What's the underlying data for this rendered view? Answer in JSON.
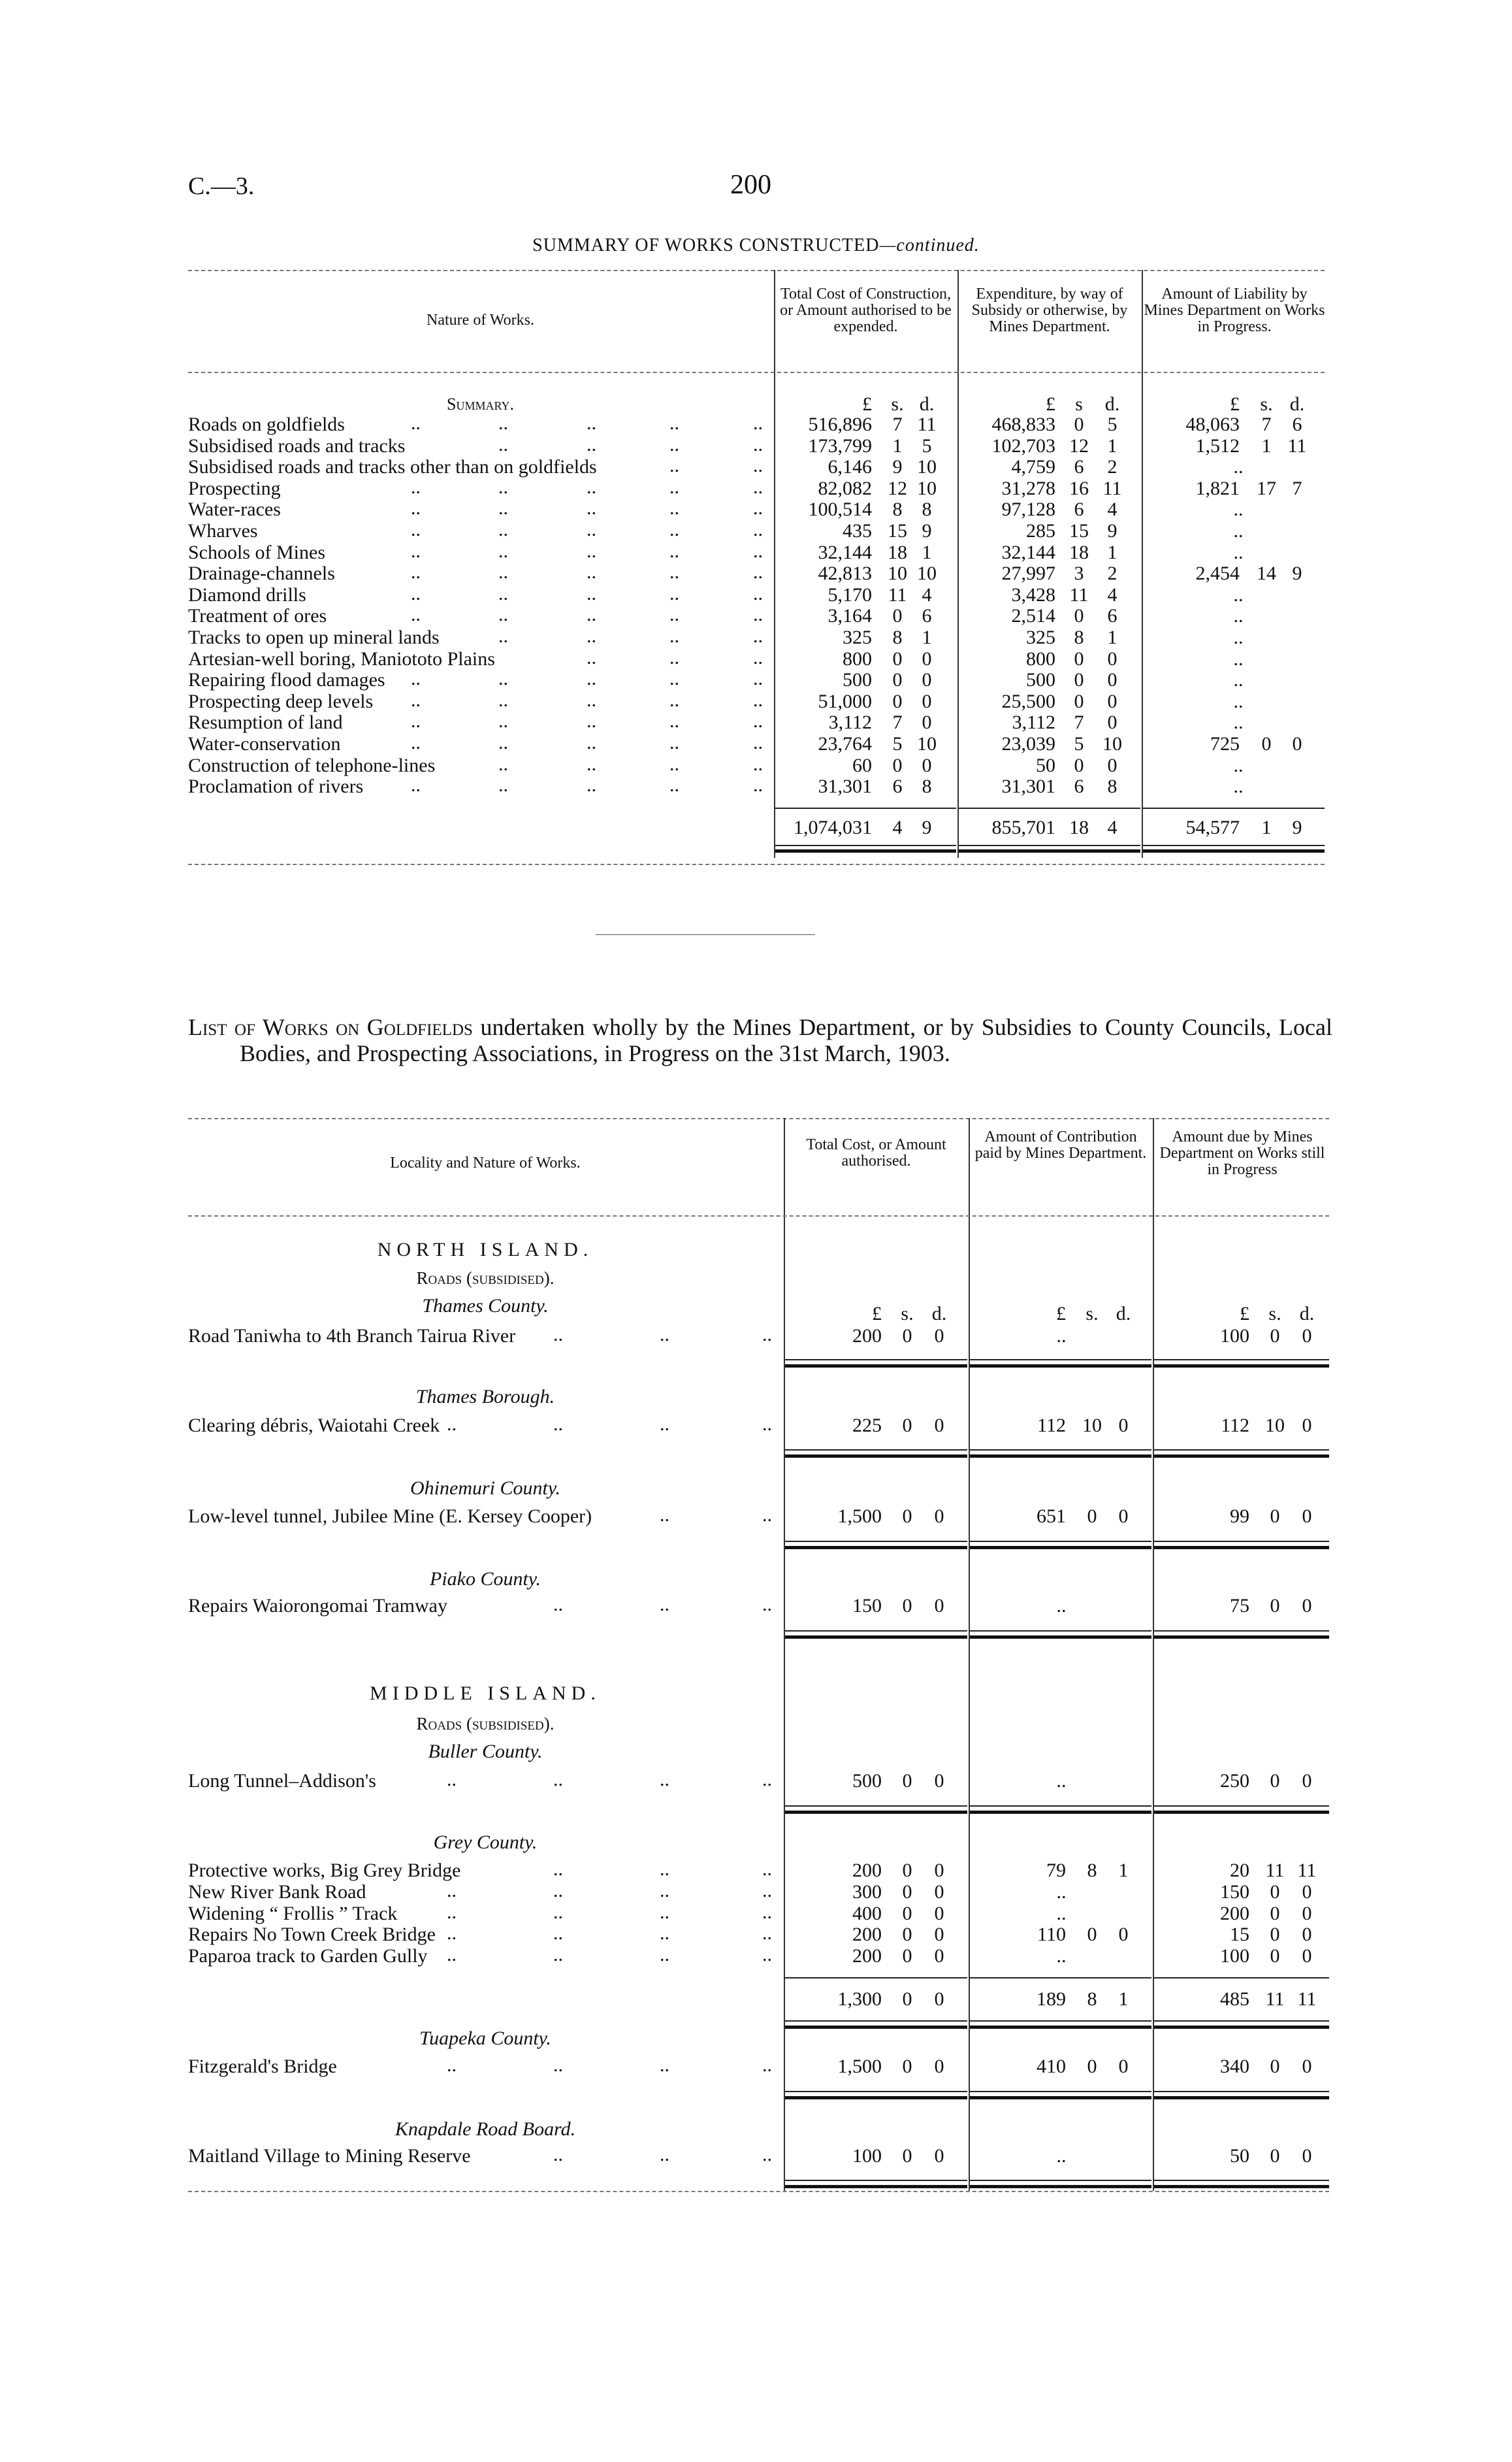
{
  "page": {
    "ref": "C.—3.",
    "number": "200"
  },
  "summary_table": {
    "title_main": "SUMMARY OF WORKS CONSTRUCTED",
    "title_cont": "—continued.",
    "headers": [
      "Nature of Works.",
      "Total Cost of Construction, or Amount authorised to be expended.",
      "Expenditure, by way of Subsidy or otherwise, by Mines Department.",
      "Amount of Liability by Mines Department on Works in Progress."
    ],
    "section_label": "Summary.",
    "units": [
      [
        "£",
        "s.",
        "d."
      ],
      [
        "£",
        "s",
        "d."
      ],
      [
        "£",
        "s.",
        "d."
      ]
    ],
    "rows": [
      {
        "label": "Roads on goldfields",
        "a": [
          "516,896",
          "7",
          "11"
        ],
        "b": [
          "468,833",
          "0",
          "5"
        ],
        "c": [
          "48,063",
          "7",
          "6"
        ]
      },
      {
        "label": "Subsidised roads and tracks",
        "a": [
          "173,799",
          "1",
          "5"
        ],
        "b": [
          "102,703",
          "12",
          "1"
        ],
        "c": [
          "1,512",
          "1",
          "11"
        ]
      },
      {
        "label": "Subsidised roads and tracks other than on goldfields",
        "a": [
          "6,146",
          "9",
          "10"
        ],
        "b": [
          "4,759",
          "6",
          "2"
        ],
        "c": ".."
      },
      {
        "label": "Prospecting",
        "a": [
          "82,082",
          "12",
          "10"
        ],
        "b": [
          "31,278",
          "16",
          "11"
        ],
        "c": [
          "1,821",
          "17",
          "7"
        ]
      },
      {
        "label": "Water-races",
        "a": [
          "100,514",
          "8",
          "8"
        ],
        "b": [
          "97,128",
          "6",
          "4"
        ],
        "c": ".."
      },
      {
        "label": "Wharves",
        "a": [
          "435",
          "15",
          "9"
        ],
        "b": [
          "285",
          "15",
          "9"
        ],
        "c": ".."
      },
      {
        "label": "Schools of Mines",
        "a": [
          "32,144",
          "18",
          "1"
        ],
        "b": [
          "32,144",
          "18",
          "1"
        ],
        "c": ".."
      },
      {
        "label": "Drainage-channels",
        "a": [
          "42,813",
          "10",
          "10"
        ],
        "b": [
          "27,997",
          "3",
          "2"
        ],
        "c": [
          "2,454",
          "14",
          "9"
        ]
      },
      {
        "label": "Diamond drills",
        "a": [
          "5,170",
          "11",
          "4"
        ],
        "b": [
          "3,428",
          "11",
          "4"
        ],
        "c": ".."
      },
      {
        "label": "Treatment of ores",
        "a": [
          "3,164",
          "0",
          "6"
        ],
        "b": [
          "2,514",
          "0",
          "6"
        ],
        "c": ".."
      },
      {
        "label": "Tracks to open up mineral lands",
        "a": [
          "325",
          "8",
          "1"
        ],
        "b": [
          "325",
          "8",
          "1"
        ],
        "c": ".."
      },
      {
        "label": "Artesian-well boring, Maniototo Plains",
        "a": [
          "800",
          "0",
          "0"
        ],
        "b": [
          "800",
          "0",
          "0"
        ],
        "c": ".."
      },
      {
        "label": "Repairing flood damages",
        "a": [
          "500",
          "0",
          "0"
        ],
        "b": [
          "500",
          "0",
          "0"
        ],
        "c": ".."
      },
      {
        "label": "Prospecting deep levels",
        "a": [
          "51,000",
          "0",
          "0"
        ],
        "b": [
          "25,500",
          "0",
          "0"
        ],
        "c": ".."
      },
      {
        "label": "Resumption of land",
        "a": [
          "3,112",
          "7",
          "0"
        ],
        "b": [
          "3,112",
          "7",
          "0"
        ],
        "c": ".."
      },
      {
        "label": "Water-conservation",
        "a": [
          "23,764",
          "5",
          "10"
        ],
        "b": [
          "23,039",
          "5",
          "10"
        ],
        "c": [
          "725",
          "0",
          "0"
        ]
      },
      {
        "label": "Construction of telephone-lines",
        "a": [
          "60",
          "0",
          "0"
        ],
        "b": [
          "50",
          "0",
          "0"
        ],
        "c": ".."
      },
      {
        "label": "Proclamation of rivers",
        "a": [
          "31,301",
          "6",
          "8"
        ],
        "b": [
          "31,301",
          "6",
          "8"
        ],
        "c": ".."
      }
    ],
    "total": {
      "a": [
        "1,074,031",
        "4",
        "9"
      ],
      "b": [
        "855,701",
        "18",
        "4"
      ],
      "c": [
        "54,577",
        "1",
        "9"
      ]
    }
  },
  "list_intro": {
    "lead": "List of Works on Goldfields",
    "rest": " undertaken wholly by the Mines Department, or by Subsidies to County Councils, Local Bodies, and Prospecting Associations, in Progress on the 31st March, 1903."
  },
  "works_table": {
    "headers": [
      "Locality and Nature of Works.",
      "Total Cost, or Amount authorised.",
      "Amount of Contribution paid by Mines Department.",
      "Amount due by Mines Department on Works still in Progress"
    ],
    "units": [
      [
        "£",
        "s.",
        "d."
      ],
      [
        "£",
        "s.",
        "d."
      ],
      [
        "£",
        "s.",
        "d."
      ]
    ],
    "sections": [
      {
        "island": "NORTH ISLAND.",
        "category": "Roads (subsidised).",
        "county": "Thames County.",
        "rows": [
          {
            "label": "Road Taniwha to 4th Branch Tairua River",
            "a": [
              "200",
              "0",
              "0"
            ],
            "b": "..",
            "c": [
              "100",
              "0",
              "0"
            ]
          }
        ]
      },
      {
        "county": "Thames Borough.",
        "rows": [
          {
            "label": "Clearing débris, Waiotahi Creek",
            "a": [
              "225",
              "0",
              "0"
            ],
            "b": [
              "112",
              "10",
              "0"
            ],
            "c": [
              "112",
              "10",
              "0"
            ]
          }
        ]
      },
      {
        "county": "Ohinemuri County.",
        "rows": [
          {
            "label": "Low-level tunnel, Jubilee Mine (E. Kersey Cooper)",
            "a": [
              "1,500",
              "0",
              "0"
            ],
            "b": [
              "651",
              "0",
              "0"
            ],
            "c": [
              "99",
              "0",
              "0"
            ]
          }
        ]
      },
      {
        "county": "Piako County.",
        "rows": [
          {
            "label": "Repairs Waiorongomai Tramway",
            "a": [
              "150",
              "0",
              "0"
            ],
            "b": "..",
            "c": [
              "75",
              "0",
              "0"
            ]
          }
        ]
      },
      {
        "island": "MIDDLE ISLAND.",
        "category": "Roads (subsidised).",
        "county": "Buller County.",
        "rows": [
          {
            "label": "Long Tunnel–Addison's",
            "a": [
              "500",
              "0",
              "0"
            ],
            "b": "..",
            "c": [
              "250",
              "0",
              "0"
            ]
          }
        ]
      },
      {
        "county": "Grey County.",
        "rows": [
          {
            "label": "Protective works, Big Grey Bridge",
            "a": [
              "200",
              "0",
              "0"
            ],
            "b": [
              "79",
              "8",
              "1"
            ],
            "c": [
              "20",
              "11",
              "11"
            ]
          },
          {
            "label": "New River Bank Road",
            "a": [
              "300",
              "0",
              "0"
            ],
            "b": "..",
            "c": [
              "150",
              "0",
              "0"
            ]
          },
          {
            "label": "Widening “ Frollis ” Track",
            "a": [
              "400",
              "0",
              "0"
            ],
            "b": "..",
            "c": [
              "200",
              "0",
              "0"
            ]
          },
          {
            "label": "Repairs No Town Creek Bridge",
            "a": [
              "200",
              "0",
              "0"
            ],
            "b": [
              "110",
              "0",
              "0"
            ],
            "c": [
              "15",
              "0",
              "0"
            ]
          },
          {
            "label": "Paparoa track to Garden Gully",
            "a": [
              "200",
              "0",
              "0"
            ],
            "b": "..",
            "c": [
              "100",
              "0",
              "0"
            ]
          }
        ],
        "total": {
          "a": [
            "1,300",
            "0",
            "0"
          ],
          "b": [
            "189",
            "8",
            "1"
          ],
          "c": [
            "485",
            "11",
            "11"
          ]
        }
      },
      {
        "county": "Tuapeka County.",
        "rows": [
          {
            "label": "Fitzgerald's Bridge",
            "a": [
              "1,500",
              "0",
              "0"
            ],
            "b": [
              "410",
              "0",
              "0"
            ],
            "c": [
              "340",
              "0",
              "0"
            ]
          }
        ]
      },
      {
        "county": "Knapdale Road Board.",
        "rows": [
          {
            "label": "Maitland Village to Mining Reserve",
            "a": [
              "100",
              "0",
              "0"
            ],
            "b": "..",
            "c": [
              "50",
              "0",
              "0"
            ]
          }
        ]
      }
    ]
  }
}
